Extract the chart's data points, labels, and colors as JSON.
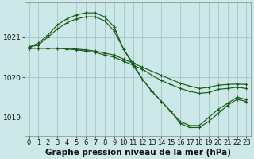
{
  "background_color": "#cce8e8",
  "grid_color": "#aacccc",
  "line_color": "#1a5c1a",
  "title": "Graphe pression niveau de la mer (hPa)",
  "title_fontsize": 7.5,
  "tick_fontsize": 6,
  "ylim": [
    1018.55,
    1021.85
  ],
  "xlim": [
    -0.5,
    23.5
  ],
  "yticks": [
    1019,
    1020,
    1021
  ],
  "xticks": [
    0,
    1,
    2,
    3,
    4,
    5,
    6,
    7,
    8,
    9,
    10,
    11,
    12,
    13,
    14,
    15,
    16,
    17,
    18,
    19,
    20,
    21,
    22,
    23
  ],
  "series": [
    {
      "x": [
        0,
        1,
        2,
        3,
        4,
        5,
        6,
        7,
        8,
        9,
        10,
        11,
        12,
        13,
        14,
        15,
        16,
        17,
        18,
        19,
        20,
        21,
        22,
        23
      ],
      "y": [
        1020.75,
        1020.85,
        1021.05,
        1021.3,
        1021.45,
        1021.55,
        1021.6,
        1021.6,
        1021.5,
        1021.25,
        1020.7,
        1020.3,
        1019.95,
        1019.65,
        1019.4,
        1019.15,
        1018.85,
        1018.75,
        1018.75,
        1018.9,
        1019.1,
        1019.3,
        1019.45,
        1019.4
      ]
    },
    {
      "x": [
        0,
        1,
        2,
        3,
        4,
        5,
        6,
        7,
        8,
        9,
        10,
        11,
        12,
        13,
        14,
        15,
        16,
        17,
        18,
        19,
        20,
        21,
        22,
        23
      ],
      "y": [
        1020.75,
        1020.8,
        1021.0,
        1021.2,
        1021.35,
        1021.45,
        1021.5,
        1021.5,
        1021.4,
        1021.15,
        1020.7,
        1020.35,
        1019.95,
        1019.65,
        1019.4,
        1019.15,
        1018.9,
        1018.8,
        1018.8,
        1019.0,
        1019.2,
        1019.35,
        1019.5,
        1019.45
      ]
    },
    {
      "x": [
        0,
        1,
        2,
        3,
        4,
        5,
        6,
        7,
        8,
        9,
        10,
        11,
        12,
        13,
        14,
        15,
        16,
        17,
        18,
        19,
        20,
        21,
        22,
        23
      ],
      "y": [
        1020.72,
        1020.72,
        1020.72,
        1020.72,
        1020.72,
        1020.7,
        1020.68,
        1020.65,
        1020.6,
        1020.55,
        1020.45,
        1020.35,
        1020.25,
        1020.15,
        1020.05,
        1019.95,
        1019.85,
        1019.78,
        1019.72,
        1019.75,
        1019.8,
        1019.82,
        1019.83,
        1019.82
      ]
    },
    {
      "x": [
        0,
        1,
        2,
        3,
        4,
        5,
        6,
        7,
        8,
        9,
        10,
        11,
        12,
        13,
        14,
        15,
        16,
        17,
        18,
        19,
        20,
        21,
        22,
        23
      ],
      "y": [
        1020.72,
        1020.72,
        1020.72,
        1020.72,
        1020.7,
        1020.68,
        1020.65,
        1020.62,
        1020.55,
        1020.5,
        1020.4,
        1020.3,
        1020.2,
        1020.05,
        1019.92,
        1019.82,
        1019.72,
        1019.65,
        1019.6,
        1019.62,
        1019.7,
        1019.72,
        1019.75,
        1019.72
      ]
    }
  ]
}
